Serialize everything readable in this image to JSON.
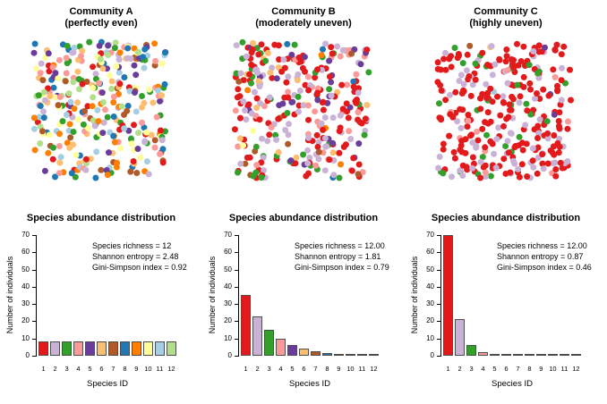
{
  "figure": {
    "background": "#ffffff",
    "bar_border_color": "#4d4d4d",
    "palette": [
      "#E31A1C",
      "#CAB2D6",
      "#33A02C",
      "#FB9A99",
      "#6A3D9A",
      "#FDBF6F",
      "#B15928",
      "#1F78B4",
      "#FF7F00",
      "#FFFF99",
      "#A6CEE3",
      "#B2DF8A"
    ]
  },
  "chart_common": {
    "title": "Species abundance distribution",
    "xlabel": "Species ID",
    "ylabel": "Number of individuals",
    "ylim": [
      0,
      70
    ],
    "yticks": [
      0,
      10,
      20,
      30,
      40,
      50,
      60,
      70
    ],
    "categories": [
      "1",
      "2",
      "3",
      "4",
      "5",
      "6",
      "7",
      "8",
      "9",
      "10",
      "11",
      "12"
    ]
  },
  "communities": [
    {
      "id": "A",
      "title": "Community A",
      "subtitle": "(perfectly even)",
      "stats": [
        "Species richness = 12",
        "Shannon entropy = 2.48",
        "Gini-Simpson index = 0.92"
      ],
      "abundances": [
        8.33,
        8.33,
        8.33,
        8.33,
        8.33,
        8.33,
        8.33,
        8.33,
        8.33,
        8.33,
        8.33,
        8.33
      ],
      "scatter": {
        "n_points": 320
      }
    },
    {
      "id": "B",
      "title": "Community B",
      "subtitle": "(moderately uneven)",
      "stats": [
        "Species richness = 12.00",
        "Shannon entropy = 1.81",
        "Gini-Simpson index = 0.79"
      ],
      "abundances": [
        35.2,
        22.9,
        14.9,
        9.7,
        6.3,
        4.1,
        2.7,
        1.7,
        1.1,
        0.7,
        0.5,
        0.3
      ],
      "scatter": {
        "n_points": 320
      }
    },
    {
      "id": "C",
      "title": "Community C",
      "subtitle": "(highly uneven)",
      "stats": [
        "Species richness = 12.00",
        "Shannon entropy = 0.87",
        "Gini-Simpson index = 0.46"
      ],
      "abundances": [
        70,
        21,
        6.3,
        1.9,
        0.6,
        0.2,
        0.06,
        0.05,
        0.05,
        0.05,
        0.05,
        0.05
      ],
      "scatter": {
        "n_points": 320
      }
    }
  ],
  "chart_data": [
    {
      "type": "scatter",
      "panel": "top-left",
      "title": "Community A (perfectly even)",
      "n_points": 320,
      "species_proportions": [
        0.0833,
        0.0833,
        0.0833,
        0.0833,
        0.0833,
        0.0833,
        0.0833,
        0.0833,
        0.0833,
        0.0833,
        0.0833,
        0.0833
      ],
      "point_colors": [
        "#E31A1C",
        "#CAB2D6",
        "#33A02C",
        "#FB9A99",
        "#6A3D9A",
        "#FDBF6F",
        "#B15928",
        "#1F78B4",
        "#FF7F00",
        "#FFFF99",
        "#A6CEE3",
        "#B2DF8A"
      ]
    },
    {
      "type": "scatter",
      "panel": "top-middle",
      "title": "Community B (moderately uneven)",
      "n_points": 320,
      "species_proportions": [
        0.352,
        0.229,
        0.149,
        0.097,
        0.063,
        0.041,
        0.027,
        0.017,
        0.011,
        0.007,
        0.005,
        0.003
      ],
      "point_colors": [
        "#E31A1C",
        "#CAB2D6",
        "#33A02C",
        "#FB9A99",
        "#6A3D9A",
        "#FDBF6F",
        "#B15928",
        "#1F78B4",
        "#FF7F00",
        "#FFFF99",
        "#A6CEE3",
        "#B2DF8A"
      ]
    },
    {
      "type": "scatter",
      "panel": "top-right",
      "title": "Community C (highly uneven)",
      "n_points": 320,
      "species_proportions": [
        0.7,
        0.21,
        0.063,
        0.019,
        0.006,
        0.002,
        0.0006,
        0.0005,
        0.0005,
        0.0005,
        0.0005,
        0.0005
      ],
      "point_colors": [
        "#E31A1C",
        "#CAB2D6",
        "#33A02C",
        "#FB9A99",
        "#6A3D9A",
        "#FDBF6F",
        "#B15928",
        "#1F78B4",
        "#FF7F00",
        "#FFFF99",
        "#A6CEE3",
        "#B2DF8A"
      ]
    },
    {
      "type": "bar",
      "panel": "bottom-left",
      "title": "Species abundance distribution",
      "categories": [
        "1",
        "2",
        "3",
        "4",
        "5",
        "6",
        "7",
        "8",
        "9",
        "10",
        "11",
        "12"
      ],
      "values": [
        8.33,
        8.33,
        8.33,
        8.33,
        8.33,
        8.33,
        8.33,
        8.33,
        8.33,
        8.33,
        8.33,
        8.33
      ],
      "xlabel": "Species ID",
      "ylabel": "Number of individuals",
      "ylim": [
        0,
        70
      ],
      "yticks": [
        0,
        10,
        20,
        30,
        40,
        50,
        60,
        70
      ],
      "grid": false,
      "annotations": [
        "Species richness = 12",
        "Shannon entropy = 2.48",
        "Gini-Simpson index = 0.92"
      ]
    },
    {
      "type": "bar",
      "panel": "bottom-middle",
      "title": "Species abundance distribution",
      "categories": [
        "1",
        "2",
        "3",
        "4",
        "5",
        "6",
        "7",
        "8",
        "9",
        "10",
        "11",
        "12"
      ],
      "values": [
        35.2,
        22.9,
        14.9,
        9.7,
        6.3,
        4.1,
        2.7,
        1.7,
        1.1,
        0.7,
        0.5,
        0.3
      ],
      "xlabel": "Species ID",
      "ylabel": "Number of individuals",
      "ylim": [
        0,
        70
      ],
      "yticks": [
        0,
        10,
        20,
        30,
        40,
        50,
        60,
        70
      ],
      "grid": false,
      "annotations": [
        "Species richness = 12.00",
        "Shannon entropy = 1.81",
        "Gini-Simpson index = 0.79"
      ]
    },
    {
      "type": "bar",
      "panel": "bottom-right",
      "title": "Species abundance distribution",
      "categories": [
        "1",
        "2",
        "3",
        "4",
        "5",
        "6",
        "7",
        "8",
        "9",
        "10",
        "11",
        "12"
      ],
      "values": [
        70,
        21,
        6.3,
        1.9,
        0.6,
        0.2,
        0.06,
        0.05,
        0.05,
        0.05,
        0.05,
        0.05
      ],
      "xlabel": "Species ID",
      "ylabel": "Number of individuals",
      "ylim": [
        0,
        70
      ],
      "yticks": [
        0,
        10,
        20,
        30,
        40,
        50,
        60,
        70
      ],
      "grid": false,
      "annotations": [
        "Species richness = 12.00",
        "Shannon entropy = 0.87",
        "Gini-Simpson index = 0.46"
      ]
    }
  ]
}
